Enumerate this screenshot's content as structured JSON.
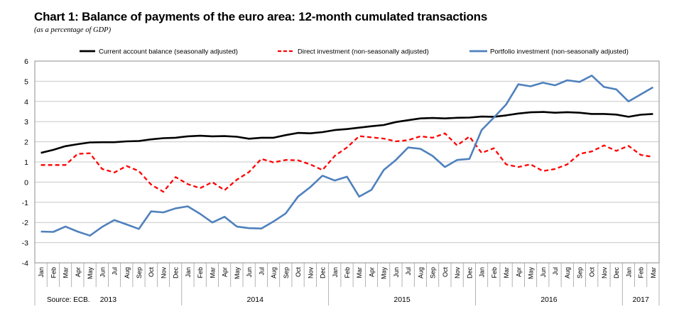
{
  "chart_data": {
    "type": "line",
    "title": "Chart 1: Balance of payments of the euro area: 12-month cumulated transactions",
    "subtitle": "(as a percentage of GDP)",
    "source": "Source: ECB.",
    "ylim": [
      -4,
      6
    ],
    "yticks": [
      "-4",
      "-3",
      "-2",
      "-1",
      "0",
      "1",
      "2",
      "3",
      "4",
      "5",
      "6"
    ],
    "grid": true,
    "legend_position": "top",
    "months": [
      "Jan",
      "Feb",
      "Mar",
      "Apr",
      "May",
      "Jun",
      "Jul",
      "Aug",
      "Sep",
      "Oct",
      "Nov",
      "Dec",
      "Jan",
      "Feb",
      "Mar",
      "Apr",
      "May",
      "Jun",
      "Jul",
      "Aug",
      "Sep",
      "Oct",
      "Nov",
      "Dec",
      "Jan",
      "Feb",
      "Mar",
      "Apr",
      "May",
      "Jun",
      "Jul",
      "Aug",
      "Sep",
      "Oct",
      "Nov",
      "Dec",
      "Jan",
      "Feb",
      "Mar",
      "Apr",
      "May",
      "Jun",
      "Jul",
      "Aug",
      "Sep",
      "Oct",
      "Nov",
      "Dec",
      "Jan",
      "Feb",
      "Mar"
    ],
    "years": [
      {
        "label": "2013",
        "span": 12
      },
      {
        "label": "2014",
        "span": 12
      },
      {
        "label": "2015",
        "span": 12
      },
      {
        "label": "2016",
        "span": 12
      },
      {
        "label": "2017",
        "span": 3
      }
    ],
    "series": [
      {
        "name": "Current account balance (seasonally adjusted)",
        "color": "#000000",
        "style": "solid",
        "values": [
          1.45,
          1.6,
          1.78,
          1.88,
          1.97,
          1.98,
          1.98,
          2.02,
          2.04,
          2.12,
          2.18,
          2.2,
          2.27,
          2.3,
          2.27,
          2.28,
          2.25,
          2.15,
          2.2,
          2.2,
          2.33,
          2.44,
          2.42,
          2.48,
          2.58,
          2.63,
          2.7,
          2.77,
          2.83,
          2.98,
          3.07,
          3.16,
          3.18,
          3.16,
          3.19,
          3.2,
          3.25,
          3.24,
          3.31,
          3.4,
          3.46,
          3.48,
          3.44,
          3.47,
          3.44,
          3.38,
          3.38,
          3.35,
          3.24,
          3.34,
          3.38
        ]
      },
      {
        "name": "Direct investment (non-seasonally adjusted)",
        "color": "#ff0000",
        "style": "dashed",
        "values": [
          0.85,
          0.85,
          0.85,
          1.4,
          1.43,
          0.65,
          0.48,
          0.8,
          0.55,
          -0.12,
          -0.48,
          0.25,
          -0.1,
          -0.3,
          0.0,
          -0.4,
          0.12,
          0.5,
          1.15,
          0.98,
          1.1,
          1.08,
          0.88,
          0.6,
          1.3,
          1.72,
          2.28,
          2.22,
          2.16,
          2.02,
          2.08,
          2.27,
          2.2,
          2.42,
          1.82,
          2.26,
          1.45,
          1.68,
          0.88,
          0.75,
          0.88,
          0.55,
          0.65,
          0.88,
          1.4,
          1.52,
          1.82,
          1.55,
          1.8,
          1.35,
          1.25
        ]
      },
      {
        "name": "Portfolio investment (non-seasonally adjusted)",
        "color": "#4f81bd",
        "style": "solid",
        "values": [
          -2.45,
          -2.47,
          -2.2,
          -2.45,
          -2.65,
          -2.22,
          -1.88,
          -2.1,
          -2.32,
          -1.45,
          -1.5,
          -1.3,
          -1.2,
          -1.57,
          -2.0,
          -1.72,
          -2.2,
          -2.28,
          -2.3,
          -1.95,
          -1.55,
          -0.72,
          -0.25,
          0.32,
          0.08,
          0.27,
          -0.72,
          -0.38,
          0.6,
          1.1,
          1.72,
          1.65,
          1.3,
          0.75,
          1.1,
          1.15,
          2.58,
          3.2,
          3.85,
          4.85,
          4.75,
          4.93,
          4.8,
          5.05,
          4.97,
          5.28,
          4.72,
          4.6,
          4.0,
          4.35,
          4.7
        ]
      }
    ]
  }
}
